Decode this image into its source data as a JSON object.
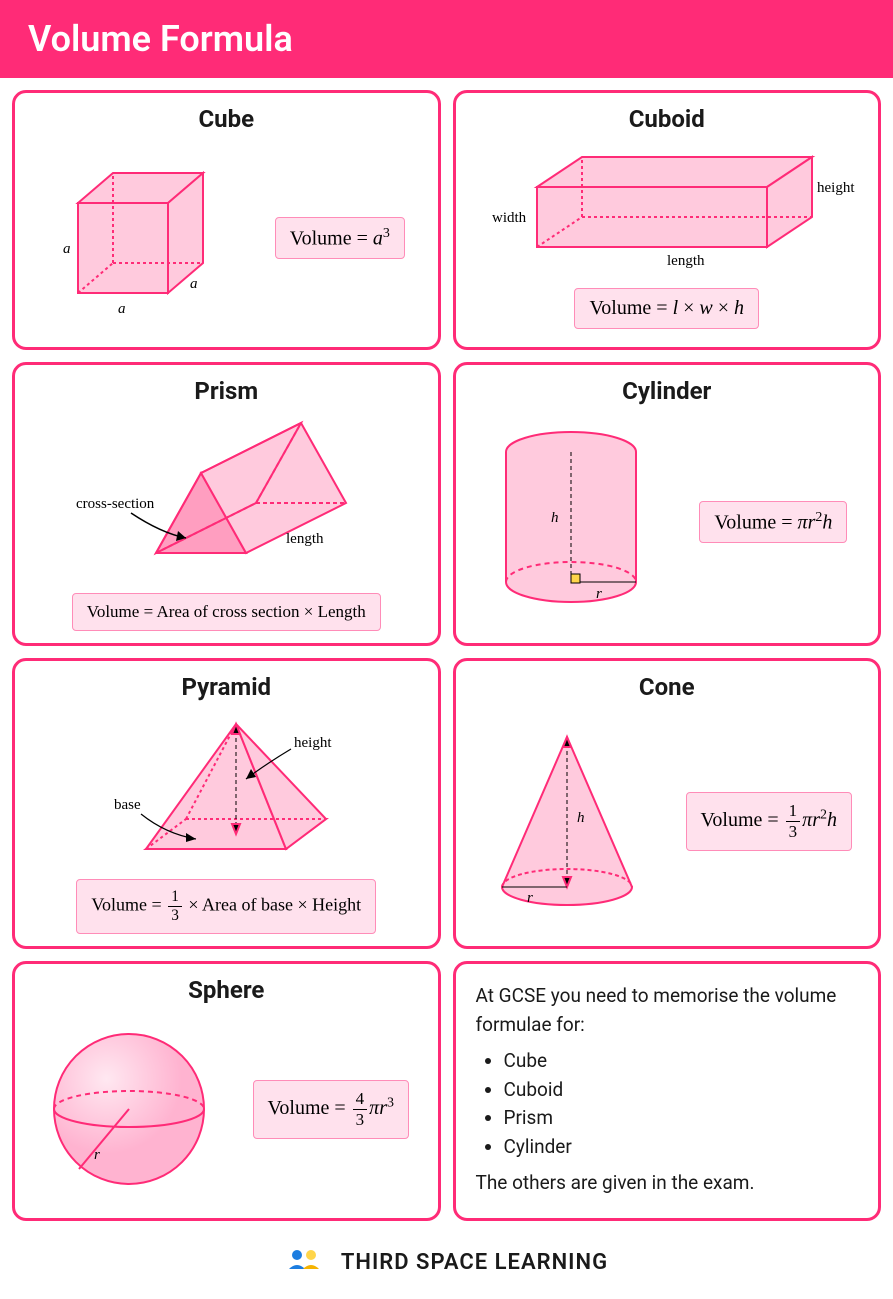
{
  "colors": {
    "accent": "#ff2b77",
    "fill": "#ffcadd",
    "fillDark": "#ff9ec0",
    "formulaBg": "#ffe1ed",
    "formulaBorder": "#ff8cb8",
    "text": "#1a1a1a",
    "yellow": "#ffd54a",
    "logoBlue": "#1c7de0",
    "logoYellowDark": "#f5b301"
  },
  "header": {
    "title": "Volume Formula"
  },
  "cards": [
    {
      "key": "cube",
      "title": "Cube",
      "formula_html": "Volume = <i>a</i><span class='sup'>3</span>",
      "labels": {
        "a": "a"
      }
    },
    {
      "key": "cuboid",
      "title": "Cuboid",
      "formula_html": "Volume = <i>l</i> × <i>w</i> × <i>h</i>",
      "labels": {
        "width": "width",
        "length": "length",
        "height": "height"
      }
    },
    {
      "key": "prism",
      "title": "Prism",
      "formula_html": "Volume = Area of cross section × Length",
      "labels": {
        "cross": "cross-section",
        "length": "length"
      }
    },
    {
      "key": "cylinder",
      "title": "Cylinder",
      "formula_html": "Volume = <i>π</i><i>r</i><span class='sup'>2</span><i>h</i>",
      "labels": {
        "h": "h",
        "r": "r"
      }
    },
    {
      "key": "pyramid",
      "title": "Pyramid",
      "formula_html": "Volume = <span class='frac'><span class='num'>1</span><span class='den'>3</span></span> × Area of base × Height",
      "labels": {
        "base": "base",
        "height": "height"
      }
    },
    {
      "key": "cone",
      "title": "Cone",
      "formula_html": "Volume = <span class='frac'><span class='num'>1</span><span class='den'>3</span></span><i>π</i><i>r</i><span class='sup'>2</span><i>h</i>",
      "labels": {
        "h": "h",
        "r": "r"
      }
    },
    {
      "key": "sphere",
      "title": "Sphere",
      "formula_html": "Volume = <span class='frac'><span class='num'>4</span><span class='den'>3</span></span><i>π</i><i>r</i><span class='sup'>3</span>",
      "labels": {
        "r": "r"
      }
    }
  ],
  "info": {
    "intro": "At GCSE you need to memorise the volume formulae for:",
    "items": [
      "Cube",
      "Cuboid",
      "Prism",
      "Cylinder"
    ],
    "outro": "The others are given in the exam."
  },
  "footer": {
    "brand": "THIRD SPACE LEARNING"
  },
  "style": {
    "card_border_radius": 14,
    "stroke_width": 2,
    "title_fontsize": 24,
    "formula_fontsize": 20,
    "label_fontsize": 15,
    "font_family_formula": "Times New Roman"
  }
}
